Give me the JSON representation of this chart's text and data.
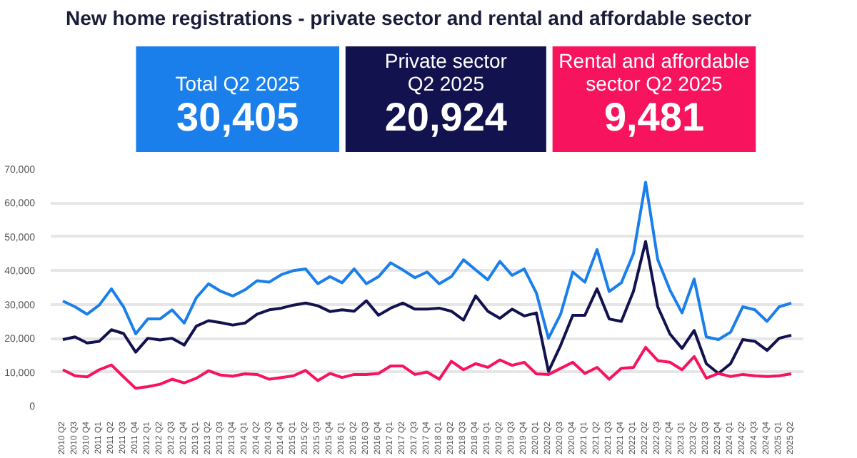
{
  "chart_data": {
    "type": "line",
    "title": "New home registrations - private sector and rental and affordable sector",
    "annotations": [
      "Total Q2 2025",
      "30,405",
      "Private sector\nQ2 2025",
      "20,924",
      "Rental and affordable\nsector Q2 2025",
      "9,481"
    ],
    "categories": [
      "2010 Q2",
      "2010 Q3",
      "2010 Q4",
      "2011 Q1",
      "2011 Q2",
      "2011 Q3",
      "2011 Q4",
      "2012 Q1",
      "2012 Q2",
      "2012 Q3",
      "2012 Q4",
      "2013 Q1",
      "2013 Q2",
      "2013 Q3",
      "2013 Q4",
      "2014 Q1",
      "2014 Q2",
      "2014 Q3",
      "2014 Q4",
      "2015 Q1",
      "2015 Q2",
      "2015 Q3",
      "2015 Q4",
      "2016 Q1",
      "2016 Q2",
      "2016 Q3",
      "2016 Q4",
      "2017 Q1",
      "2017 Q2",
      "2017 Q3",
      "2017 Q4",
      "2018 Q1",
      "2018 Q2",
      "2018 Q3",
      "2018 Q4",
      "2019 Q1",
      "2019 Q2",
      "2019 Q3",
      "2019 Q4",
      "2020 Q1",
      "2020 Q2",
      "2020 Q3",
      "2020 Q4",
      "2021 Q1",
      "2021 Q2",
      "2021 Q3",
      "2021 Q4",
      "2022 Q1",
      "2022 Q2",
      "2022 Q3",
      "2022 Q4",
      "2023 Q1",
      "2023 Q2",
      "2023 Q3",
      "2023 Q4",
      "2024 Q1",
      "2024 Q2",
      "2024 Q3",
      "2024 Q4",
      "2025 Q1",
      "2025 Q2"
    ],
    "series": [
      {
        "color": "#1a7fea",
        "values": [
          31000,
          29300,
          27100,
          29800,
          34600,
          29300,
          21300,
          25700,
          25700,
          28400,
          24500,
          32000,
          36100,
          33900,
          32500,
          34300,
          37000,
          36600,
          38800,
          40000,
          40500,
          36100,
          38200,
          36400,
          40500,
          36100,
          38200,
          42300,
          40200,
          37900,
          39600,
          36100,
          38200,
          43200,
          40200,
          37300,
          42700,
          38600,
          40500,
          33400,
          20000,
          27100,
          39600,
          36600,
          46200,
          33800,
          36400,
          45000,
          66100,
          43200,
          34300,
          27500,
          37500,
          20400,
          19600,
          21800,
          29300,
          28400,
          25000,
          29300,
          30400
        ]
      },
      {
        "color": "#12124f",
        "values": [
          19600,
          20400,
          18600,
          19100,
          22500,
          21400,
          15900,
          20000,
          19500,
          20000,
          18000,
          23600,
          25200,
          24600,
          23900,
          24500,
          27100,
          28400,
          28900,
          29800,
          30400,
          29600,
          27900,
          28400,
          28000,
          31100,
          26800,
          28900,
          30400,
          28600,
          28600,
          28900,
          28000,
          25400,
          32500,
          28000,
          25900,
          28600,
          26600,
          27500,
          10200,
          17900,
          26800,
          26800,
          34600,
          25700,
          25000,
          33900,
          48600,
          29300,
          21300,
          17000,
          22300,
          12500,
          9600,
          12500,
          19600,
          19100,
          16400,
          20000,
          20900
        ]
      },
      {
        "color": "#f7135e",
        "values": [
          10700,
          8900,
          8600,
          10700,
          12100,
          8600,
          5200,
          5700,
          6400,
          7900,
          6800,
          8200,
          10400,
          9100,
          8800,
          9500,
          9300,
          7900,
          8400,
          8900,
          10500,
          7500,
          9600,
          8400,
          9300,
          9300,
          9600,
          11800,
          11800,
          9300,
          10000,
          7900,
          13200,
          10700,
          12500,
          11400,
          13600,
          12000,
          12900,
          9500,
          9300,
          11100,
          12900,
          9600,
          11400,
          7900,
          11100,
          11400,
          17300,
          13400,
          12900,
          10700,
          14600,
          8200,
          9600,
          8700,
          9300,
          8900,
          8700,
          8900,
          9500
        ]
      }
    ],
    "ylim": [
      0,
      70000
    ],
    "yticks": [
      0,
      {
        "value": 10000,
        "label": "10,000"
      },
      {
        "value": 20000,
        "label": "20,000"
      },
      {
        "value": 30000,
        "label": "30,000"
      },
      {
        "value": 40000,
        "label": "40,000"
      },
      {
        "value": 50000,
        "label": "50,000"
      },
      {
        "value": 60000,
        "label": "60,000"
      },
      {
        "value": 70000,
        "label": "70,000"
      }
    ],
    "grid": "y"
  }
}
